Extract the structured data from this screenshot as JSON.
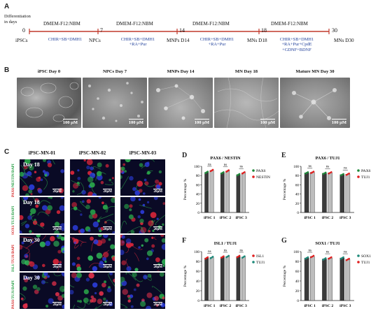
{
  "panel_a": {
    "letter": "A",
    "diff_label": "Differentiation\nin days",
    "stages": [
      {
        "day": "0",
        "name": "iPSCs"
      },
      {
        "day": "7",
        "name": "NPCs"
      },
      {
        "day": "14",
        "name": "MNPs D14"
      },
      {
        "day": "18",
        "name": "MNs D18"
      },
      {
        "day": "30",
        "name": "MNs D30"
      }
    ],
    "segments": [
      {
        "medium": "DMEM-F12:NBM",
        "factors": "CHIR+SB+DMH1"
      },
      {
        "medium": "DMEM-F12:NBM",
        "factors": "CHIR+SB+DMH1\n+RA+Pur"
      },
      {
        "medium": "DMEM-F12:NBM",
        "factors": "CHIR+SB+DMH1\n+RA+Pur"
      },
      {
        "medium": "DMEM-F12:NBM",
        "factors": "CHIR+SB+DMH1\n+RA+Pur+CpdE\n+GDNF+BDNF"
      }
    ],
    "accent_color": "#1f3f9a",
    "arrow_color": "#c0392b"
  },
  "panel_b": {
    "letter": "B",
    "images": [
      {
        "label": "iPSC Day 0",
        "scale": "100 μM"
      },
      {
        "label": "NPCs Day 7",
        "scale": "100 μM"
      },
      {
        "label": "MNPs Day 14",
        "scale": "100 μM"
      },
      {
        "label": "MN Day 18",
        "scale": "100 μM"
      },
      {
        "label": "Mature MN Day 30",
        "scale": "100 μM"
      }
    ]
  },
  "panel_c": {
    "letter": "C",
    "columns": [
      "iPSC-MN-01",
      "iPSC-MN-02",
      "iPSC-MN-03"
    ],
    "rows": [
      {
        "day": "Day 18",
        "stain": [
          "PAX6",
          "/NESTIN/DAPI"
        ],
        "colors": [
          "red",
          "green"
        ]
      },
      {
        "day": "Day 18",
        "stain": [
          "SOX1",
          "/TUJ1/DAPI"
        ],
        "colors": [
          "red",
          "green"
        ]
      },
      {
        "day": "Day 30",
        "stain": [
          "ISL1",
          "/TUJ1/DAPI"
        ],
        "colors": [
          "green",
          "red"
        ]
      },
      {
        "day": "Day 30",
        "stain": [
          "PAX6",
          "/TUJ1/DAPI"
        ],
        "colors": [
          "red",
          "green"
        ]
      }
    ],
    "scale": "20μM"
  },
  "chart_data": [
    {
      "panel": "D",
      "type": "bar",
      "title": "PAX6 / NESTIN",
      "ylabel": "Percentage %",
      "categories": [
        "iPSC 1",
        "iPSC 2",
        "iPSC 3"
      ],
      "series": [
        {
          "name": "PAX6",
          "values": [
            87,
            86,
            82
          ],
          "color": "#3a3a3a",
          "dot": "#1f8a3a"
        },
        {
          "name": "NESTIN",
          "values": [
            91,
            90,
            86
          ],
          "color": "#bdbdbd",
          "dot": "#e02020"
        }
      ],
      "significance": [
        "ns",
        "ns",
        "ns"
      ],
      "ylim": [
        0,
        100
      ],
      "yticks": [
        0,
        20,
        40,
        60,
        80,
        100
      ]
    },
    {
      "panel": "E",
      "type": "bar",
      "title": "PAX6 / TUJ1",
      "ylabel": "Percentage %",
      "categories": [
        "iPSC 1",
        "iPSC 2",
        "iPSC 3"
      ],
      "series": [
        {
          "name": "PAX6",
          "values": [
            86,
            85,
            82
          ],
          "color": "#3a3a3a",
          "dot": "#1f8a3a"
        },
        {
          "name": "TUJ1",
          "values": [
            87,
            86,
            83
          ],
          "color": "#bdbdbd",
          "dot": "#e02020"
        }
      ],
      "significance": [
        "ns",
        "ns",
        "ns"
      ],
      "ylim": [
        0,
        100
      ],
      "yticks": [
        0,
        20,
        40,
        60,
        80,
        100
      ]
    },
    {
      "panel": "F",
      "type": "bar",
      "title": "ISL1 / TUJ1",
      "ylabel": "Percentage %",
      "categories": [
        "iPSC 1",
        "iPSC 2",
        "iPSC 3"
      ],
      "series": [
        {
          "name": "ISL1",
          "values": [
            87,
            89,
            90
          ],
          "color": "#3a3a3a",
          "dot": "#e02020"
        },
        {
          "name": "TUJ1",
          "values": [
            88,
            90,
            89
          ],
          "color": "#bdbdbd",
          "dot": "#1f8a7a"
        }
      ],
      "significance": [
        "ns",
        "ns",
        "ns"
      ],
      "ylim": [
        0,
        100
      ],
      "yticks": [
        0,
        20,
        40,
        60,
        80,
        100
      ]
    },
    {
      "panel": "G",
      "type": "bar",
      "title": "SOX1 / TUJ1",
      "ylabel": "Percentage %",
      "categories": [
        "iPSC 1",
        "iPSC 2",
        "iPSC 3"
      ],
      "series": [
        {
          "name": "SOX1",
          "values": [
            87,
            85,
            87
          ],
          "color": "#3a3a3a",
          "dot": "#1f8a7a"
        },
        {
          "name": "TUJ1",
          "values": [
            90,
            87,
            84
          ],
          "color": "#bdbdbd",
          "dot": "#e02020"
        }
      ],
      "significance": [
        "ns",
        "ns",
        "ns"
      ],
      "ylim": [
        0,
        100
      ],
      "yticks": [
        0,
        20,
        40,
        60,
        80,
        100
      ]
    }
  ]
}
